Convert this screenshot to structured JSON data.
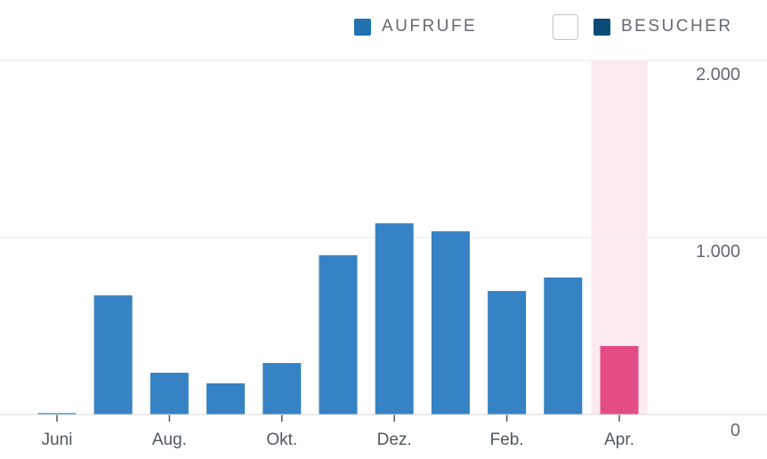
{
  "chart_data": {
    "type": "bar",
    "categories": [
      "Juni",
      "",
      "Aug.",
      "",
      "Okt.",
      "",
      "Dez.",
      "",
      "Feb.",
      "",
      "Apr."
    ],
    "series": [
      {
        "name": "AUFRUFE",
        "values": [
          8,
          673,
          236,
          176,
          291,
          900,
          1080,
          1035,
          698,
          774,
          387
        ]
      }
    ],
    "highlighted_index": 10,
    "ylim": [
      0,
      2000
    ],
    "yticks": [
      0,
      1000,
      2000
    ],
    "ytick_labels": [
      "0",
      "1.000",
      "2.000"
    ],
    "grid": true,
    "legend": [
      {
        "label": "AUFRUFE",
        "color": "#2271b1"
      },
      {
        "label": "BESUCHER",
        "color": "#0a4b78",
        "checkbox": true
      }
    ],
    "colors": {
      "bar": "#3582c4",
      "highlight_bar": "#e34c84",
      "highlight_band": "#fbeaf0",
      "grid": "#f0f0f1"
    }
  }
}
